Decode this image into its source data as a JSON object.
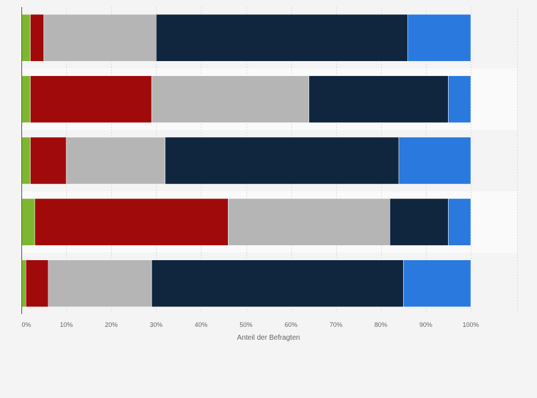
{
  "chart_data": {
    "type": "bar",
    "orientation": "horizontal",
    "stacked": true,
    "categories": [
      "",
      "",
      "",
      "",
      ""
    ],
    "series": [
      {
        "color": "#7db72f",
        "values": [
          2,
          2,
          2,
          3,
          1
        ]
      },
      {
        "color": "#a10a0a",
        "values": [
          3,
          27,
          8,
          43,
          5
        ]
      },
      {
        "color": "#b5b5b5",
        "values": [
          25,
          35,
          22,
          36,
          23
        ]
      },
      {
        "color": "#10253e",
        "values": [
          56,
          31,
          52,
          13,
          56
        ]
      },
      {
        "color": "#2979de",
        "values": [
          14,
          5,
          16,
          5,
          15
        ]
      }
    ],
    "xlim": [
      0,
      100
    ],
    "x_ticks": [
      "0%",
      "10%",
      "20%",
      "30%",
      "40%",
      "50%",
      "60%",
      "70%",
      "80%",
      "90%",
      "100%"
    ],
    "xlabel": "Anteil der Befragten",
    "grid": true,
    "legend": "none"
  }
}
